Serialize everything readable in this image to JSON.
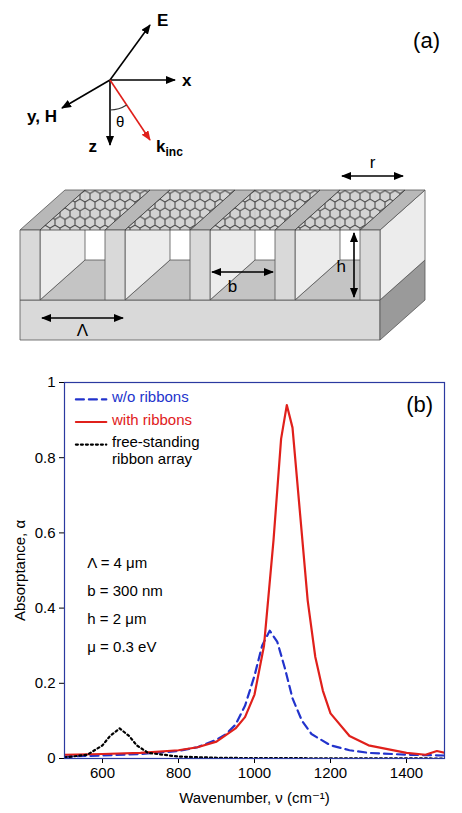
{
  "diagram": {
    "panel_label": "(a)",
    "axes": {
      "E": "E",
      "x": "x",
      "y": "y, H",
      "z": "z",
      "angle": "θ",
      "k": {
        "text": "k",
        "subscript": "inc"
      }
    },
    "dimensions": {
      "period": "Λ",
      "width": "b",
      "depth": "h",
      "ribbon": "r"
    }
  },
  "chart_data": {
    "type": "line",
    "panel_label": "(b)",
    "x_label": "Wavenumber, ν (cm⁻¹)",
    "y_label": "Absorptance, α",
    "xlim": [
      500,
      1500
    ],
    "xticks": [
      600,
      800,
      1000,
      1200,
      1400
    ],
    "ylim": [
      0,
      1
    ],
    "yticks": [
      0,
      0.2,
      0.4,
      0.6,
      0.8,
      1
    ],
    "legend": "top-left",
    "annotations": [
      "Λ = 4 μm",
      "b = 300 nm",
      "h = 2 μm",
      "μ = 0.3 eV"
    ],
    "series": [
      {
        "name": "w/o ribbons",
        "color": "#2233cc",
        "line_style": "dashed",
        "x": [
          500,
          600,
          700,
          800,
          850,
          900,
          925,
          950,
          975,
          1000,
          1020,
          1040,
          1060,
          1080,
          1100,
          1125,
          1150,
          1200,
          1250,
          1300,
          1400,
          1500
        ],
        "values": [
          0.005,
          0.008,
          0.012,
          0.02,
          0.03,
          0.05,
          0.065,
          0.09,
          0.14,
          0.22,
          0.3,
          0.34,
          0.31,
          0.24,
          0.16,
          0.1,
          0.065,
          0.035,
          0.022,
          0.015,
          0.01,
          0.008
        ]
      },
      {
        "name": "with ribbons",
        "color": "#e0201b",
        "line_style": "solid",
        "x": [
          500,
          600,
          700,
          800,
          850,
          900,
          950,
          975,
          1000,
          1025,
          1050,
          1070,
          1085,
          1100,
          1120,
          1140,
          1160,
          1180,
          1200,
          1250,
          1300,
          1400,
          1450,
          1480,
          1500
        ],
        "values": [
          0.01,
          0.012,
          0.015,
          0.022,
          0.03,
          0.045,
          0.08,
          0.11,
          0.17,
          0.3,
          0.58,
          0.85,
          0.94,
          0.88,
          0.65,
          0.42,
          0.27,
          0.18,
          0.12,
          0.06,
          0.035,
          0.015,
          0.01,
          0.02,
          0.015
        ]
      },
      {
        "name": "free-standing ribbon array",
        "color": "#000000",
        "line_style": "dotted",
        "x": [
          500,
          560,
          600,
          620,
          645,
          670,
          690,
          720,
          800,
          900,
          1000,
          1500
        ],
        "values": [
          0.003,
          0.01,
          0.035,
          0.06,
          0.08,
          0.06,
          0.035,
          0.015,
          0.005,
          0.002,
          0.001,
          0
        ]
      }
    ]
  }
}
